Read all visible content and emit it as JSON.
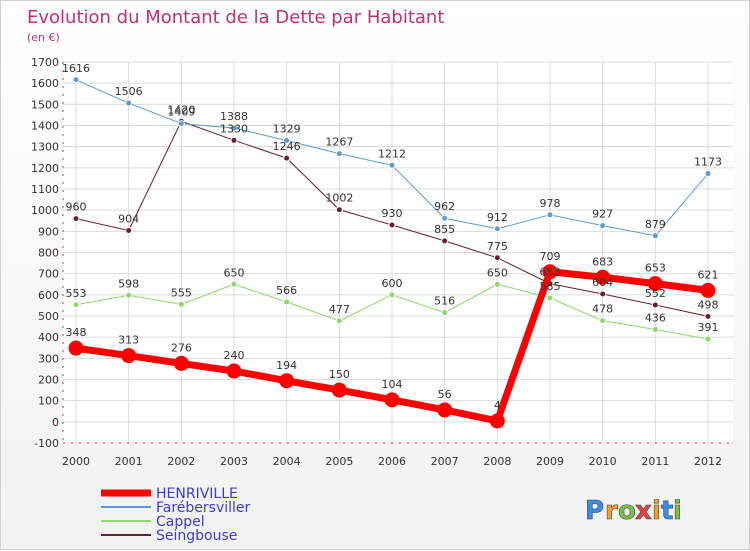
{
  "chart_data": {
    "type": "line",
    "title": "Evolution du Montant de la Dette par Habitant",
    "subtitle": "(en €)",
    "categories": [
      "2000",
      "2001",
      "2002",
      "2003",
      "2004",
      "2005",
      "2006",
      "2007",
      "2008",
      "2009",
      "2010",
      "2011",
      "2012"
    ],
    "ylim": [
      -100,
      1700
    ],
    "yticks": [
      -100,
      0,
      100,
      200,
      300,
      400,
      500,
      600,
      700,
      800,
      900,
      1000,
      1100,
      1200,
      1300,
      1400,
      1500,
      1600,
      1700
    ],
    "grid": true,
    "legend_position": "bottom-left",
    "series": [
      {
        "name": "Seingbouse",
        "color": "#6b1f2a",
        "width": 1,
        "marker_r": 3,
        "values": [
          960,
          904,
          1420,
          1330,
          1246,
          1002,
          930,
          855,
          775,
          653,
          604,
          552,
          498
        ]
      },
      {
        "name": "Cappel",
        "color": "#8cd86a",
        "width": 1,
        "marker_r": 3,
        "values": [
          553,
          598,
          555,
          650,
          566,
          477,
          600,
          516,
          650,
          585,
          478,
          436,
          391
        ]
      },
      {
        "name": "Farébersviller",
        "color": "#5a9bd5",
        "width": 1,
        "marker_r": 3,
        "values": [
          1616,
          1506,
          1409,
          1388,
          1329,
          1267,
          1212,
          962,
          912,
          978,
          927,
          879,
          1173
        ]
      },
      {
        "name": "HENRIVILLE",
        "color": "#ff0000",
        "width": 7,
        "marker_r": 7,
        "values": [
          348,
          313,
          276,
          240,
          194,
          150,
          104,
          56,
          4,
          709,
          683,
          653,
          621
        ]
      }
    ],
    "legend_order": [
      "HENRIVILLE",
      "Farébersviller",
      "Cappel",
      "Seingbouse"
    ]
  },
  "brand": {
    "letters": [
      "P",
      "r",
      "o",
      "x",
      "i",
      "t",
      "i"
    ],
    "colors": [
      "#3a8ee6",
      "#f0a030",
      "#7bc043",
      "#e84040",
      "#f0a030",
      "#3a8ee6",
      "#7bc043"
    ]
  }
}
